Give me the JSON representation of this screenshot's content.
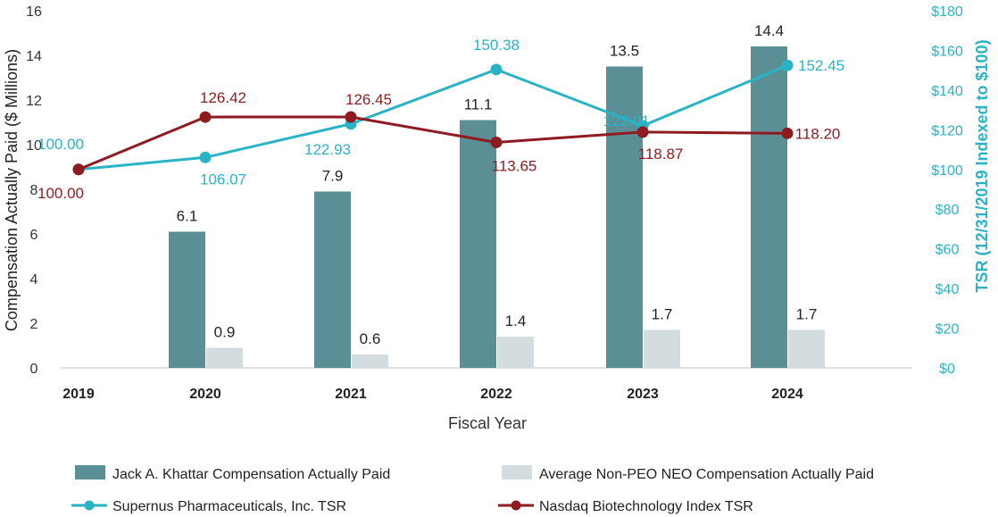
{
  "chart_data": {
    "type": "bar+line",
    "categories": [
      "2019",
      "2020",
      "2021",
      "2022",
      "2023",
      "2024"
    ],
    "xlabel": "Fiscal Year",
    "ylabel_left": "Compensation Actually Paid ($ Millions)",
    "ylabel_right": "TSR (12/31/2019 Indexed to $100)",
    "ylim_left": [
      0,
      16
    ],
    "yticks_left": [
      "0",
      "2",
      "4",
      "6",
      "8",
      "10",
      "12",
      "14",
      "16"
    ],
    "ylim_right": [
      0,
      180
    ],
    "yticks_right": [
      "$0",
      "$20",
      "$40",
      "$60",
      "$80",
      "$100",
      "$120",
      "$140",
      "$160",
      "$180"
    ],
    "bar_series": [
      {
        "name": "Jack A. Khattar Compensation Actually Paid",
        "color": "#5a8f95",
        "values": [
          null,
          6.1,
          7.9,
          11.1,
          13.5,
          14.4
        ],
        "labels": [
          "",
          "6.1",
          "7.9",
          "11.1",
          "13.5",
          "14.4"
        ]
      },
      {
        "name": "Average Non-PEO NEO Compensation Actually Paid",
        "color": "#d3dde0",
        "values": [
          null,
          0.9,
          0.6,
          1.4,
          1.7,
          1.7
        ],
        "labels": [
          "",
          "0.9",
          "0.6",
          "1.4",
          "1.7",
          "1.7"
        ]
      }
    ],
    "line_series": [
      {
        "name": "Supernus Pharmaceuticals, Inc. TSR",
        "color": "#2ab3c5",
        "values": [
          100.0,
          106.07,
          122.93,
          150.38,
          122.01,
          152.45
        ],
        "labels": [
          "100.00",
          "106.07",
          "122.93",
          "150.38",
          "122.01",
          "152.45"
        ]
      },
      {
        "name": "Nasdaq Biotechnology Index TSR",
        "color": "#8e1b1f",
        "values": [
          100.0,
          126.42,
          126.45,
          113.65,
          118.87,
          118.2
        ],
        "labels": [
          "100.00",
          "126.42",
          "126.45",
          "113.65",
          "118.87",
          "118.20"
        ]
      }
    ],
    "legend_position": "bottom"
  }
}
